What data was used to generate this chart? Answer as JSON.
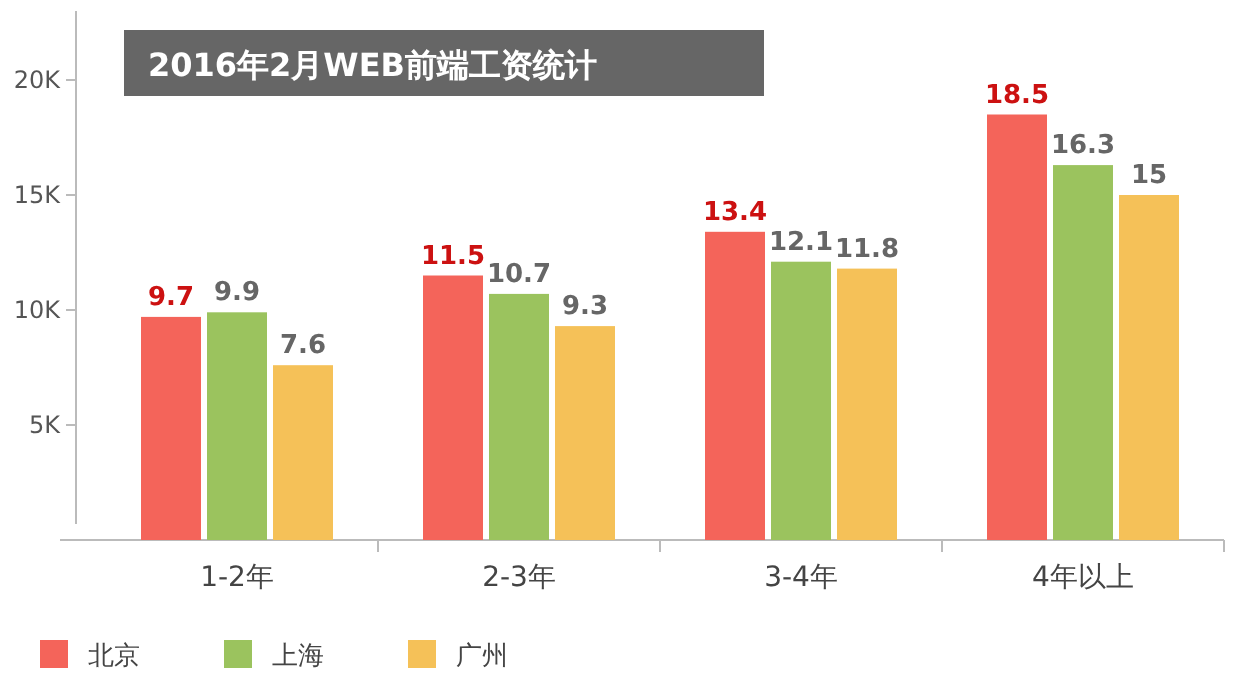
{
  "chart_data": {
    "type": "bar",
    "title": "2016年2月WEB前端工资统计",
    "categories": [
      "1-2年",
      "2-3年",
      "3-4年",
      "4年以上"
    ],
    "series": [
      {
        "name": "北京",
        "color": "#f4645a",
        "values": [
          9.7,
          11.5,
          13.4,
          18.5
        ]
      },
      {
        "name": "上海",
        "color": "#9bc35e",
        "values": [
          9.9,
          10.7,
          12.1,
          16.3
        ]
      },
      {
        "name": "广州",
        "color": "#f5c158",
        "values": [
          7.6,
          9.3,
          11.8,
          15
        ]
      }
    ],
    "ylim": [
      0,
      23
    ],
    "yticks": [
      {
        "value": 5,
        "label": "5K"
      },
      {
        "value": 10,
        "label": "10K"
      },
      {
        "value": 15,
        "label": "15K"
      },
      {
        "value": 20,
        "label": "20K"
      }
    ],
    "data_labels": true,
    "legend": "bottom left",
    "grid": false
  }
}
